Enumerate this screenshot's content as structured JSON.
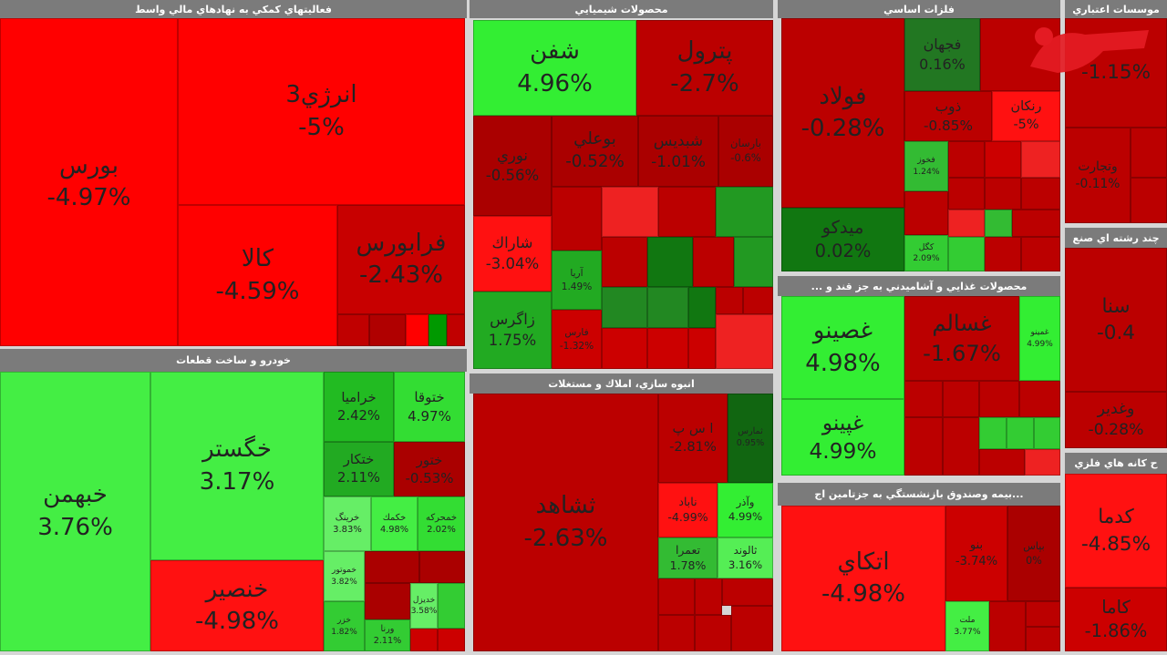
{
  "sectors": [
    {
      "title": "فعاليتهاي كمكي به نهادهاي مالي واسط",
      "tiles": [
        {
          "name": "بورس",
          "change": "-4.97%"
        },
        {
          "name": "انرژي3",
          "change": "-5%"
        },
        {
          "name": "كالا",
          "change": "-4.59%"
        },
        {
          "name": "فرابورس",
          "change": "-2.43%"
        }
      ]
    },
    {
      "title": "خودرو و ساخت قطعات",
      "tiles": [
        {
          "name": "خبهمن",
          "change": "3.76%"
        },
        {
          "name": "خگستر",
          "change": "3.17%"
        },
        {
          "name": "خنصير",
          "change": "-4.98%"
        },
        {
          "name": "خراميا",
          "change": "2.42%"
        },
        {
          "name": "ختوقا",
          "change": "4.97%"
        },
        {
          "name": "ختكار",
          "change": "2.11%"
        },
        {
          "name": "ختور",
          "change": "-0.53%"
        },
        {
          "name": "خرينگ",
          "change": "3.83%"
        },
        {
          "name": "خكمك",
          "change": "4.98%"
        },
        {
          "name": "خمحركه",
          "change": "2.02%"
        },
        {
          "name": "خموتور",
          "change": "3.82%"
        },
        {
          "name": "خزر",
          "change": "1.82%"
        },
        {
          "name": "ورنا",
          "change": "2.11%"
        },
        {
          "name": "خديزل",
          "change": "3.58%"
        }
      ]
    },
    {
      "title": "محصولات شيميايي",
      "tiles": [
        {
          "name": "شفن",
          "change": "4.96%"
        },
        {
          "name": "پترول",
          "change": "-2.7%"
        },
        {
          "name": "نوري",
          "change": "-0.56%"
        },
        {
          "name": "بوعلي",
          "change": "-0.52%"
        },
        {
          "name": "شبديس",
          "change": "-1.01%"
        },
        {
          "name": "بارسان",
          "change": "-0.6%"
        },
        {
          "name": "شاراك",
          "change": "-3.04%"
        },
        {
          "name": "زاگرس",
          "change": "1.75%"
        },
        {
          "name": "آريا",
          "change": "1.49%"
        },
        {
          "name": "فارس",
          "change": "-1.32%"
        }
      ]
    },
    {
      "title": "انبوه سازي، املاك و مستغلات",
      "tiles": [
        {
          "name": "ثشاهد",
          "change": "-2.63%"
        },
        {
          "name": "ا س پ",
          "change": "-2.81%"
        },
        {
          "name": "ثمارس",
          "change": "0.95%"
        },
        {
          "name": "ناباد",
          "change": "-4.99%"
        },
        {
          "name": "وآذر",
          "change": "4.99%"
        },
        {
          "name": "تعمرا",
          "change": "1.78%"
        },
        {
          "name": "ثالوند",
          "change": "3.16%"
        }
      ]
    },
    {
      "title": "فلزات اساسي",
      "tiles": [
        {
          "name": "فولاد",
          "change": "-0.28%"
        },
        {
          "name": "ميدكو",
          "change": "0.02%"
        },
        {
          "name": "فجهان",
          "change": "0.16%"
        },
        {
          "name": "ذوب",
          "change": "-0.85%"
        },
        {
          "name": "رنكان",
          "change": "-5%"
        },
        {
          "name": "فخوز",
          "change": "1.24%"
        },
        {
          "name": "كگل",
          "change": "2.09%"
        }
      ]
    },
    {
      "title": "محصولات غذايي و آشاميدني به جز قند و ...",
      "tiles": [
        {
          "name": "غصينو",
          "change": "4.98%"
        },
        {
          "name": "غپينو",
          "change": "4.99%"
        },
        {
          "name": "غسالم",
          "change": "-1.67%"
        },
        {
          "name": "غمينو",
          "change": "4.99%"
        }
      ]
    },
    {
      "title": "...بيمه وصندوق بازنشستگي به جزتامين اج",
      "tiles": [
        {
          "name": "اتكاي",
          "change": "-4.98%"
        },
        {
          "name": "بنو",
          "change": "-3.74%"
        },
        {
          "name": "بپاس",
          "change": "0%"
        },
        {
          "name": "ملت",
          "change": "3.77%"
        }
      ]
    },
    {
      "title": "موسسات اعتباري",
      "tiles": [
        {
          "change": "-1.15%"
        },
        {
          "name": "وتجارت",
          "change": "-0.11%"
        }
      ]
    },
    {
      "title": "چند رشته اي صنع",
      "tiles": [
        {
          "name": "سنا",
          "change": "-0.4"
        },
        {
          "name": "وغدير",
          "change": "-0.28%"
        }
      ]
    },
    {
      "title": "ح كانه هاي فلزي",
      "tiles": [
        {
          "name": "كدما",
          "change": "-4.85%"
        },
        {
          "name": "كاما",
          "change": "-1.86%"
        }
      ]
    }
  ]
}
